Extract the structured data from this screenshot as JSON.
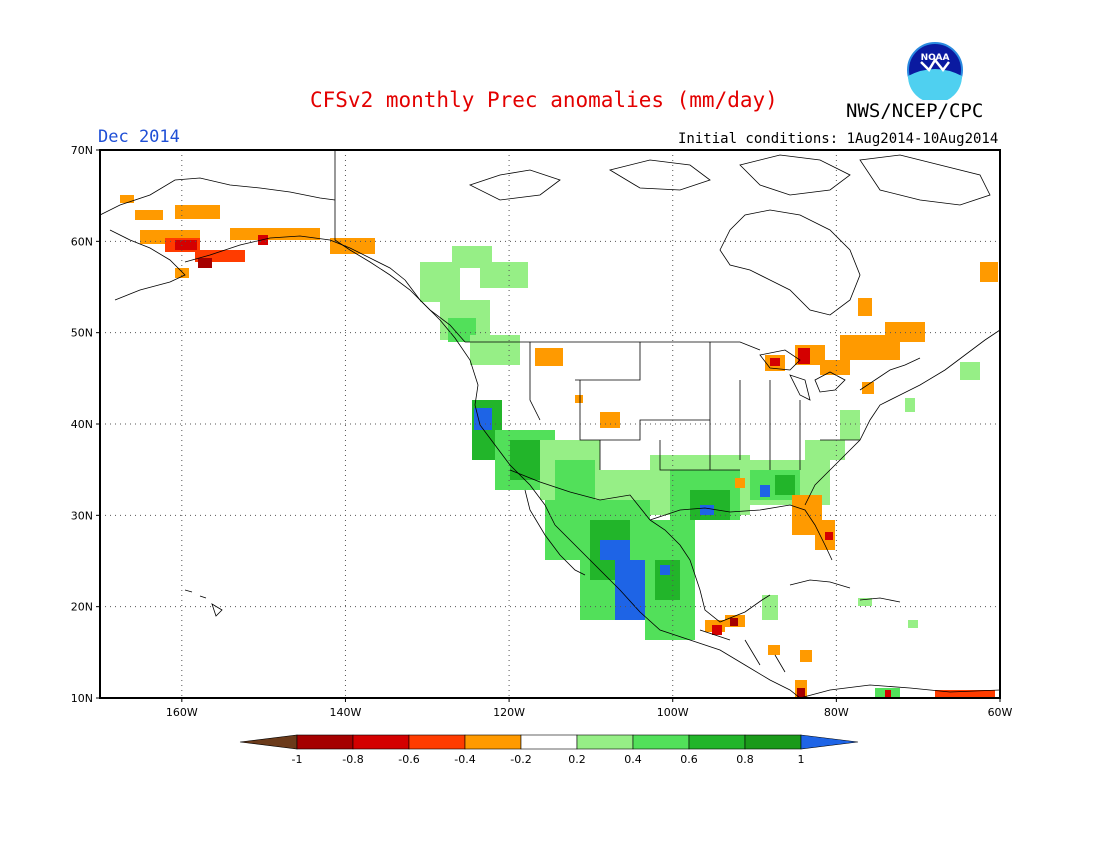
{
  "title": "CFSv2 monthly Prec anomalies (mm/day)",
  "organization": "NWS/NCEP/CPC",
  "logo_text": "NOAA",
  "valid_month": "Dec 2014",
  "initial_conditions": "Initial conditions: 1Aug2014-10Aug2014",
  "map": {
    "lat_range": [
      10,
      70
    ],
    "lon_range": [
      -170,
      -60
    ],
    "lat_ticks": [
      {
        "value": 70,
        "label": "70N"
      },
      {
        "value": 60,
        "label": "60N"
      },
      {
        "value": 50,
        "label": "50N"
      },
      {
        "value": 40,
        "label": "40N"
      },
      {
        "value": 30,
        "label": "30N"
      },
      {
        "value": 20,
        "label": "20N"
      },
      {
        "value": 10,
        "label": "10N"
      }
    ],
    "lon_ticks": [
      {
        "value": -160,
        "label": "160W"
      },
      {
        "value": -140,
        "label": "140W"
      },
      {
        "value": -120,
        "label": "120W"
      },
      {
        "value": -100,
        "label": "100W"
      },
      {
        "value": -80,
        "label": "80W"
      },
      {
        "value": -60,
        "label": "60W"
      }
    ],
    "grid": "dotted"
  },
  "colorbar": {
    "labels": [
      "-1",
      "-0.8",
      "-0.6",
      "-0.4",
      "-0.2",
      "0.2",
      "0.4",
      "0.6",
      "0.8",
      "1"
    ],
    "colors": [
      "#6b3a1a",
      "#a50000",
      "#d40000",
      "#ff3c00",
      "#ff9a00",
      "#ffffff",
      "#96ef86",
      "#52e05a",
      "#22b52a",
      "#1a9a1a",
      "#1e64e6"
    ]
  }
}
